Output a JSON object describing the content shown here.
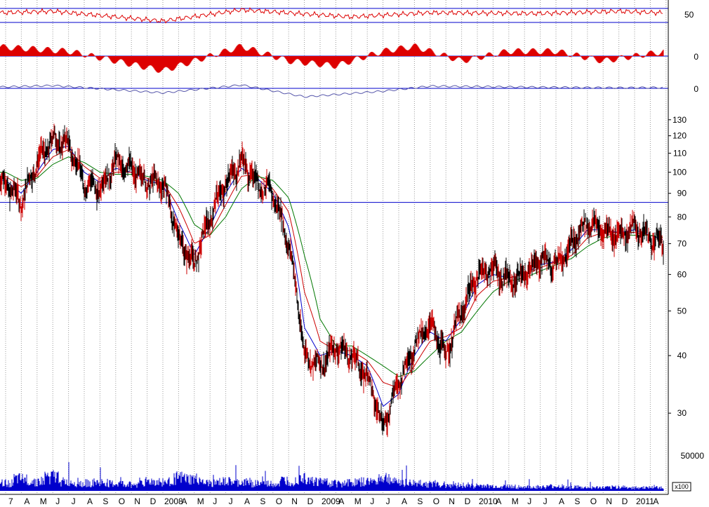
{
  "colors": {
    "price_up": "#cc0000",
    "price_down": "#000000",
    "ma_short": "#0000cc",
    "ma_mid": "#cc0000",
    "ma_long": "#007700",
    "hline": "#0000cc",
    "volume": "#0000cc",
    "grid": "#9a9a9a",
    "osc": "#dd0000",
    "osc2": "#5555aa"
  },
  "chart_data": [
    {
      "type": "line",
      "panel": "oscillator-1",
      "yticks": [
        "50"
      ],
      "hlines": [
        80,
        30
      ],
      "ylim": [
        20,
        90
      ],
      "x": [
        "2007-01",
        "2007-06",
        "2008-01",
        "2008-06",
        "2009-01",
        "2009-06",
        "2010-01",
        "2010-06",
        "2011-01",
        "2011-04"
      ],
      "values": [
        62,
        70,
        35,
        75,
        50,
        65,
        62,
        70,
        55,
        72
      ]
    },
    {
      "type": "bar",
      "panel": "oscillator-2",
      "yticks": [
        "0"
      ],
      "baseline": 0,
      "x": [
        "2007-02",
        "2007-07",
        "2007-10",
        "2008-01",
        "2008-06",
        "2008-09",
        "2008-12",
        "2009-03",
        "2009-05",
        "2009-08",
        "2009-11",
        "2010-02",
        "2010-05",
        "2010-09",
        "2010-12",
        "2011-02",
        "2011-04"
      ],
      "values": [
        2,
        1,
        -1,
        -3,
        2,
        -1,
        -2,
        1,
        2,
        -1,
        1,
        1,
        -1,
        1,
        2,
        -1,
        1
      ]
    },
    {
      "type": "line",
      "panel": "oscillator-3",
      "yticks": [
        "0"
      ],
      "baseline": 0,
      "x": [
        "2007-01",
        "2007-06",
        "2008-01",
        "2008-06",
        "2008-10",
        "2009-03",
        "2009-06",
        "2010-01",
        "2010-06",
        "2011-01",
        "2011-04"
      ],
      "values": [
        0.1,
        0.5,
        -0.8,
        0.6,
        -1.5,
        -0.5,
        0.4,
        0.2,
        0.1,
        0.2,
        0.3
      ]
    },
    {
      "type": "line",
      "panel": "price",
      "scale": "log",
      "yticks": [
        "130",
        "120",
        "110",
        "100",
        "90",
        "80",
        "70",
        "60",
        "50",
        "40",
        "30"
      ],
      "ylim": [
        26,
        135
      ],
      "hline": 86,
      "x_labels": [
        "7",
        "A",
        "M",
        "J",
        "J",
        "A",
        "S",
        "O",
        "N",
        "D",
        "2008",
        "A",
        "M",
        "J",
        "J",
        "A",
        "S",
        "O",
        "N",
        "D",
        "2009",
        "A",
        "M",
        "J",
        "J",
        "A",
        "S",
        "O",
        "N",
        "D",
        "2010",
        "A",
        "M",
        "J",
        "J",
        "A",
        "S",
        "O",
        "N",
        "D",
        "2011",
        "A"
      ],
      "x": [
        "2007-03",
        "2007-04",
        "2007-05",
        "2007-06",
        "2007-07",
        "2007-08",
        "2007-09",
        "2007-10",
        "2007-11",
        "2007-12",
        "2008-01",
        "2008-02",
        "2008-03",
        "2008-04",
        "2008-05",
        "2008-06",
        "2008-07",
        "2008-08",
        "2008-09",
        "2008-10",
        "2008-11",
        "2008-12",
        "2009-01",
        "2009-02",
        "2009-03",
        "2009-04",
        "2009-05",
        "2009-06",
        "2009-07",
        "2009-08",
        "2009-09",
        "2009-10",
        "2009-11",
        "2009-12",
        "2010-01",
        "2010-02",
        "2010-03",
        "2010-04",
        "2010-05",
        "2010-06",
        "2010-07",
        "2010-08",
        "2010-09",
        "2010-10",
        "2010-11",
        "2010-12",
        "2011-01",
        "2011-02",
        "2011-03",
        "2011-04"
      ],
      "series": [
        {
          "key": "price",
          "values": [
            95,
            86,
            105,
            118,
            115,
            95,
            92,
            105,
            102,
            95,
            95,
            72,
            63,
            80,
            95,
            106,
            95,
            90,
            70,
            40,
            38,
            42,
            40,
            36,
            28,
            35,
            42,
            47,
            40,
            50,
            60,
            62,
            58,
            60,
            65,
            63,
            70,
            78,
            75,
            73,
            76,
            72,
            70,
            76,
            76,
            80,
            83,
            79,
            73,
            84
          ]
        },
        {
          "key": "ma_short",
          "values": [
            96,
            90,
            100,
            112,
            114,
            100,
            95,
            102,
            100,
            96,
            94,
            78,
            66,
            76,
            90,
            102,
            97,
            90,
            76,
            46,
            40,
            41,
            40,
            38,
            31,
            33,
            40,
            45,
            43,
            48,
            57,
            60,
            59,
            60,
            63,
            64,
            68,
            75,
            75,
            74,
            75,
            73,
            71,
            74,
            75,
            78,
            82,
            80,
            75,
            81
          ]
        },
        {
          "key": "ma_mid",
          "values": [
            98,
            93,
            98,
            108,
            112,
            103,
            97,
            100,
            100,
            97,
            95,
            84,
            70,
            73,
            85,
            98,
            99,
            92,
            82,
            55,
            43,
            41,
            41,
            39,
            35,
            34,
            38,
            43,
            44,
            46,
            54,
            58,
            59,
            60,
            62,
            64,
            66,
            72,
            74,
            74,
            74,
            73,
            72,
            73,
            74,
            77,
            80,
            80,
            77,
            79
          ]
        },
        {
          "key": "ma_long",
          "values": [
            100,
            96,
            97,
            104,
            108,
            105,
            100,
            99,
            99,
            98,
            96,
            90,
            77,
            73,
            80,
            92,
            98,
            96,
            88,
            66,
            48,
            42,
            42,
            40,
            38,
            36,
            37,
            40,
            43,
            45,
            50,
            55,
            58,
            59,
            61,
            63,
            65,
            69,
            72,
            73,
            73,
            73,
            72,
            72,
            73,
            75,
            78,
            80,
            79,
            79
          ]
        }
      ]
    },
    {
      "type": "bar",
      "panel": "volume",
      "yticks": [
        "50000"
      ],
      "unit_label": "x100",
      "ylim": [
        0,
        60000
      ],
      "values": [
        12000,
        18000,
        15000,
        22000,
        14000,
        12000,
        13000,
        11000,
        10000,
        15000,
        14000,
        20000,
        18000,
        12000,
        14000,
        13000,
        12000,
        11000,
        16000,
        22000,
        15000,
        12000,
        13000,
        14000,
        20000,
        14000,
        12000,
        11000,
        10000,
        9000,
        8000,
        7000,
        7000,
        6000,
        6000,
        7000,
        6000,
        5000,
        5000,
        6000,
        5000,
        5000,
        5000,
        4000,
        4000,
        5000,
        5000,
        6000,
        6000,
        5000
      ]
    }
  ]
}
